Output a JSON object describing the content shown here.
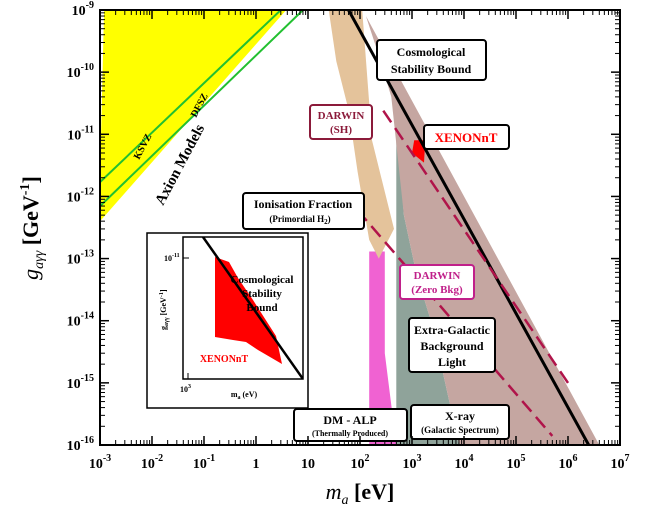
{
  "chart_data": {
    "type": "area",
    "xlabel": "m",
    "xlabel_sub": "a",
    "xlabel_unit": "[eV]",
    "ylabel": "g",
    "ylabel_sub": "aγγ",
    "ylabel_unit": "[GeV",
    "ylabel_unit_exp": "-1",
    "ylabel_unit_close": "]",
    "x_log": true,
    "y_log": true,
    "xlim": [
      0.001,
      10000000
    ],
    "ylim": [
      1e-16,
      1e-09
    ],
    "x_ticks": [
      {
        "value": 0.001,
        "base": "10",
        "exp": "-3"
      },
      {
        "value": 0.01,
        "base": "10",
        "exp": "-2"
      },
      {
        "value": 0.1,
        "base": "10",
        "exp": "-1"
      },
      {
        "value": 1,
        "base": "1",
        "exp": ""
      },
      {
        "value": 10,
        "base": "10",
        "exp": ""
      },
      {
        "value": 100,
        "base": "10",
        "exp": "2"
      },
      {
        "value": 1000,
        "base": "10",
        "exp": "3"
      },
      {
        "value": 10000,
        "base": "10",
        "exp": "4"
      },
      {
        "value": 100000,
        "base": "10",
        "exp": "5"
      },
      {
        "value": 1000000,
        "base": "10",
        "exp": "6"
      },
      {
        "value": 10000000,
        "base": "10",
        "exp": "7"
      }
    ],
    "y_ticks": [
      {
        "value": 1e-09,
        "base": "10",
        "exp": "-9"
      },
      {
        "value": 1e-10,
        "base": "10",
        "exp": "-10"
      },
      {
        "value": 1e-11,
        "base": "10",
        "exp": "-11"
      },
      {
        "value": 1e-12,
        "base": "10",
        "exp": "-12"
      },
      {
        "value": 1e-13,
        "base": "10",
        "exp": "-13"
      },
      {
        "value": 1e-14,
        "base": "10",
        "exp": "-14"
      },
      {
        "value": 1e-15,
        "base": "10",
        "exp": "-15"
      },
      {
        "value": 1e-16,
        "base": "10",
        "exp": "-16"
      }
    ],
    "regions": [
      {
        "name": "Axion Models band",
        "color": "#ffff00",
        "points": [
          [
            0.001,
            2e-12
          ],
          [
            0.001,
            4e-13
          ],
          [
            10,
            2.5e-09
          ],
          [
            10,
            1.4e-09
          ],
          [
            3,
            1e-09
          ],
          [
            0.0012,
            1e-09
          ]
        ]
      },
      {
        "name": "DM - ALP",
        "color": "#f062d2",
        "points": [
          [
            150,
            1e-16
          ],
          [
            150,
            1.3e-13
          ],
          [
            300,
            1.3e-13
          ],
          [
            300,
            3e-15
          ],
          [
            500,
            1e-16
          ]
        ]
      },
      {
        "name": "Ionisation Fraction",
        "color": "#e4c39b",
        "points": [
          [
            25,
            1e-09
          ],
          [
            110,
            1e-09
          ],
          [
            170,
            8e-12
          ],
          [
            450,
            3e-13
          ],
          [
            230,
            1e-13
          ],
          [
            150,
            2e-13
          ],
          [
            90,
            2.5e-12
          ],
          [
            60,
            2.5e-11
          ],
          [
            35,
            1.5e-10
          ]
        ]
      },
      {
        "name": "Extra-Galactic Background Light",
        "color": "#8fa39a",
        "points": [
          [
            500,
            2e-11
          ],
          [
            500,
            1e-16
          ],
          [
            8000,
            1e-16
          ],
          [
            2500,
            8e-15
          ],
          [
            1200,
            6e-14
          ],
          [
            700,
            5e-13
          ]
        ]
      },
      {
        "name": "X-ray",
        "color": "#c5a6a1",
        "points": [
          [
            130,
            8e-10
          ],
          [
            4000000,
            1e-16
          ],
          [
            8000,
            1e-16
          ],
          [
            2500,
            8e-15
          ],
          [
            1200,
            6e-14
          ],
          [
            700,
            5e-13
          ],
          [
            400,
            4e-11
          ],
          [
            250,
            1.5e-10
          ]
        ]
      },
      {
        "name": "XENONnT",
        "color": "#ff0000",
        "points": [
          [
            1000,
            5e-12
          ],
          [
            1100,
            8e-12
          ],
          [
            1800,
            8e-12
          ],
          [
            1700,
            3.5e-12
          ]
        ]
      }
    ],
    "lines": [
      {
        "name": "Cosmological Stability Bound",
        "color": "#000000",
        "dash": false,
        "points": [
          [
            60,
            1e-09
          ],
          [
            2500000,
            1e-16
          ]
        ]
      },
      {
        "name": "Cosmological Stability Bound (upper)",
        "color": "#000000",
        "dash": false,
        "points": [
          [
            60,
            1e-09
          ],
          [
            30,
            1.5e-09
          ]
        ]
      },
      {
        "name": "DARWIN (SH)",
        "color": "#b0144a",
        "dash": true,
        "points": [
          [
            280,
            2.4e-11
          ],
          [
            1000000,
            1e-15
          ]
        ]
      },
      {
        "name": "DARWIN (Zero Bkg)",
        "color": "#b0144a",
        "dash": true,
        "points": [
          [
            90,
            6e-13
          ],
          [
            500000,
            1.4e-16
          ]
        ]
      },
      {
        "name": "KSVZ",
        "color": "#22c030",
        "dash": false,
        "points": [
          [
            0.001,
            7e-13
          ],
          [
            8,
            1e-09
          ]
        ]
      },
      {
        "name": "DFSZ",
        "color": "#22c030",
        "dash": false,
        "points": [
          [
            0.001,
            1.7e-12
          ],
          [
            3,
            1e-09
          ]
        ]
      }
    ],
    "annotations": [
      {
        "lines": [
          "Cosmological",
          "Stability Bound"
        ],
        "color": "#000000"
      },
      {
        "lines": [
          "DARWIN",
          "(SH)"
        ],
        "color": "#8b1a3a"
      },
      {
        "lines": [
          "XENONnT"
        ],
        "color": "#ff0000"
      },
      {
        "lines": [
          "Ionisation Fraction",
          "(Primordial H",
          "2",
          ")"
        ],
        "color": "#000000"
      },
      {
        "lines": [
          "DARWIN",
          "(Zero Bkg)"
        ],
        "color": "#c0208a"
      },
      {
        "lines": [
          "Extra-Galactic",
          "Background",
          "Light"
        ],
        "color": "#000000"
      },
      {
        "lines": [
          "X-ray",
          "(Galactic Spectrum)"
        ],
        "color": "#000000"
      },
      {
        "lines": [
          "DM - ALP",
          "(Thermally Produced)"
        ],
        "color": "#000000"
      }
    ],
    "band_labels": {
      "ksvz": "KSVZ",
      "dfsz": "DFSZ",
      "axion": "Axion Models"
    },
    "inset": {
      "x_tick": {
        "base": "10",
        "exp": "3"
      },
      "y_tick": {
        "base": "10",
        "exp": "-11"
      },
      "xlabel": "m",
      "xlabel_sub": "a",
      "xlabel_unit": "(eV)",
      "ylabel": "g",
      "ylabel_sub": "aγγ",
      "ylabel_unit": "[GeV",
      "ylabel_exp": "-1",
      "ylabel_close": "]",
      "stability_lines": [
        "Cosmological",
        "Stability",
        "Bound"
      ],
      "xenon_label": "XENONnT"
    }
  }
}
